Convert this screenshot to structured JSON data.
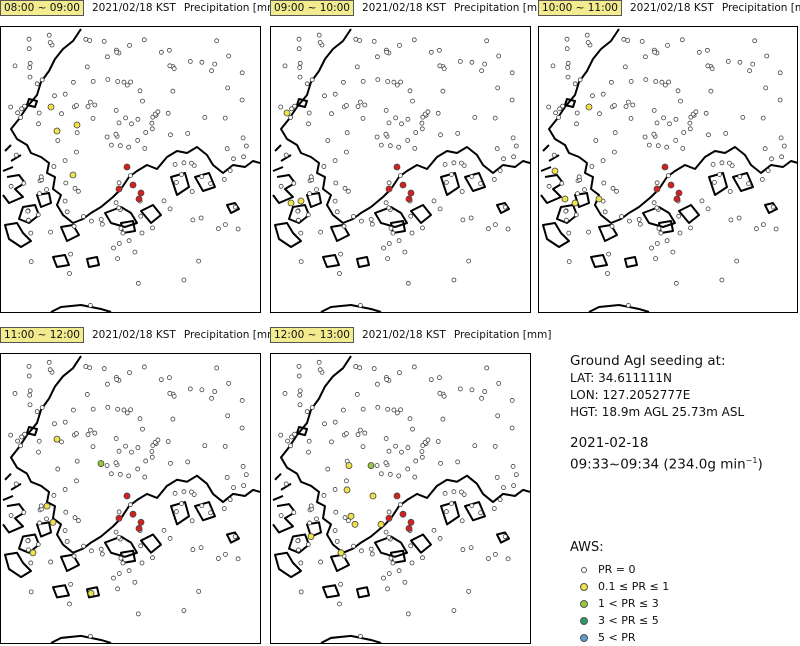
{
  "panels": [
    {
      "time": "08:00 ~ 09:00",
      "date": "2021/02/18 KST",
      "var": "Precipitation [mm]"
    },
    {
      "time": "09:00 ~ 10:00",
      "date": "2021/02/18 KST",
      "var": "Precipitation [mm]"
    },
    {
      "time": "10:00 ~ 11:00",
      "date": "2021/02/18 KST",
      "var": "Precipitation [mm]"
    },
    {
      "time": "11:00 ~ 12:00",
      "date": "2021/02/18 KST",
      "var": "Precipitation [mm]"
    },
    {
      "time": "12:00 ~ 13:00",
      "date": "2021/02/18 KST",
      "var": "Precipitation [mm]"
    }
  ],
  "info": {
    "title": "Ground AgI seeding at:",
    "lat": "LAT: 34.611111N",
    "lon": "LON: 127.2052777E",
    "hgt": "HGT: 18.9m AGL  25.73m ASL",
    "date": "2021-02-18",
    "time": "09:33~09:34 (234.0g min",
    "time_sup": "−1",
    "time_end": ")"
  },
  "legend": {
    "title": "AWS:",
    "items": [
      {
        "label": "PR = 0",
        "color": "#ffffff"
      },
      {
        "label": "0.1 ≤ PR ≤ 1",
        "color": "#f0e34a"
      },
      {
        "label": "1 < PR ≤ 3",
        "color": "#98c93c"
      },
      {
        "label": "3 < PR ≤ 5",
        "color": "#2e9a6a"
      },
      {
        "label": "5 < PR",
        "color": "#5b9bd5"
      }
    ]
  },
  "colors": {
    "zero": "#ffffff",
    "c1": "#f0e34a",
    "c2": "#98c93c",
    "seed": "#d62020"
  }
}
